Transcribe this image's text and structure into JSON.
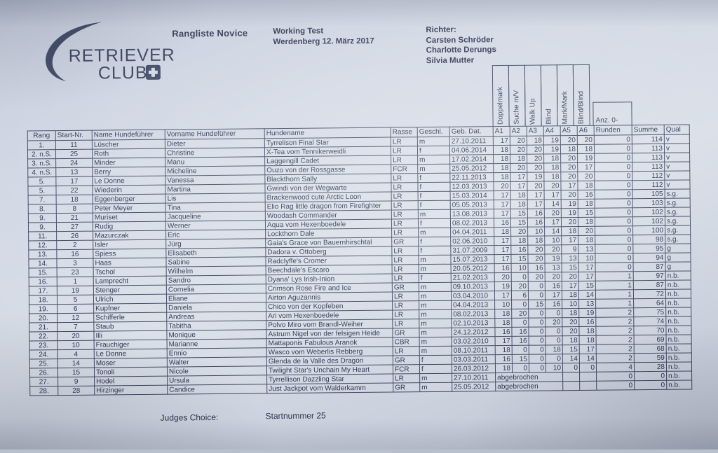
{
  "logo": {
    "line1": "RETRIEVER",
    "line2": "CLUB"
  },
  "header": {
    "title": "Rangliste Novice",
    "event_name": "Working Test",
    "event_place_date": "Werdenberg 12. März 2017",
    "judges_label": "Richter:",
    "judges": [
      "Carsten Schröder",
      "Charlotte Derungs",
      "Silvia Mutter"
    ]
  },
  "table": {
    "rotated_headers": [
      "Doppelmark",
      "Suche m/V",
      "Walk Up",
      "Blind",
      "Mark/Mark",
      "Blind/Blind"
    ],
    "anz_label": "Anz. 0-",
    "columns": [
      "Rang",
      "Start-Nr.",
      "Name Hundeführer",
      "Vorname Hundeführer",
      "Hundename",
      "Rasse",
      "Geschl.",
      "Geb. Dat.",
      "A1",
      "A2",
      "A3",
      "A4",
      "A5",
      "A6",
      "Runden",
      "Summe",
      "Qual"
    ],
    "abort_text": "abgebrochen",
    "rows": [
      {
        "rang": "1.",
        "start": "11",
        "name": "Lüscher",
        "vorname": "Dieter",
        "hund": "Tyrrelison Final Star",
        "rasse": "LR",
        "geschl": "m",
        "geb": "27.10.2011",
        "scores": [
          17,
          20,
          18,
          19,
          20,
          20
        ],
        "runden": 0,
        "summe": 114,
        "qual": "v"
      },
      {
        "rang": "2. n.S.",
        "start": "25",
        "name": "Roth",
        "vorname": "Christine",
        "hund": "X-Tea vom Tennikerweidli",
        "rasse": "LR",
        "geschl": "f",
        "geb": "04.06.2014",
        "scores": [
          18,
          20,
          20,
          19,
          18,
          18
        ],
        "runden": 0,
        "summe": 113,
        "qual": "v"
      },
      {
        "rang": "3. n.S.",
        "start": "24",
        "name": "Minder",
        "vorname": "Manu",
        "hund": "Laggengill Cadet",
        "rasse": "LR",
        "geschl": "m",
        "geb": "17.02.2014",
        "scores": [
          18,
          18,
          20,
          18,
          20,
          19
        ],
        "runden": 0,
        "summe": 113,
        "qual": "v"
      },
      {
        "rang": "4. n.S.",
        "start": "13",
        "name": "Berry",
        "vorname": "Micheline",
        "hund": "Ouzo von der Rossgasse",
        "rasse": "FCR",
        "geschl": "m",
        "geb": "25.05.2012",
        "scores": [
          18,
          20,
          20,
          18,
          20,
          17
        ],
        "runden": 0,
        "summe": 113,
        "qual": "v"
      },
      {
        "rang": "5.",
        "start": "17",
        "name": "Le Donne",
        "vorname": "Vanessa",
        "hund": "Blackthorn Sally",
        "rasse": "LR",
        "geschl": "f",
        "geb": "22.11.2013",
        "scores": [
          18,
          17,
          19,
          18,
          20,
          20
        ],
        "runden": 0,
        "summe": 112,
        "qual": "v"
      },
      {
        "rang": "5.",
        "start": "22",
        "name": "Wiederin",
        "vorname": "Martina",
        "hund": "Gwindi von der Wegwarte",
        "rasse": "LR",
        "geschl": "f",
        "geb": "12.03.2013",
        "scores": [
          20,
          17,
          20,
          20,
          17,
          18
        ],
        "runden": 0,
        "summe": 112,
        "qual": "v"
      },
      {
        "rang": "7.",
        "start": "18",
        "name": "Eggenberger",
        "vorname": "Lis",
        "hund": "Brackenwood cute Arctic Loon",
        "rasse": "LR",
        "geschl": "f",
        "geb": "15.03.2014",
        "scores": [
          17,
          18,
          17,
          17,
          20,
          16
        ],
        "runden": 0,
        "summe": 105,
        "qual": "s.g."
      },
      {
        "rang": "8.",
        "start": "8",
        "name": "Peter Meyer",
        "vorname": "Tina",
        "hund": "Elio Rag little dragon from Firefighter",
        "rasse": "LR",
        "geschl": "f",
        "geb": "05.05.2013",
        "scores": [
          17,
          18,
          17,
          14,
          19,
          18
        ],
        "runden": 0,
        "summe": 103,
        "qual": "s.g."
      },
      {
        "rang": "9.",
        "start": "21",
        "name": "Muriset",
        "vorname": "Jacqueline",
        "hund": "Woodash Commander",
        "rasse": "LR",
        "geschl": "m",
        "geb": "13.08.2013",
        "scores": [
          17,
          15,
          16,
          20,
          19,
          15
        ],
        "runden": 0,
        "summe": 102,
        "qual": "s.g."
      },
      {
        "rang": "9.",
        "start": "27",
        "name": "Rudig",
        "vorname": "Werner",
        "hund": "Aqua vom Hexenboedele",
        "rasse": "LR",
        "geschl": "f",
        "geb": "08.02.2013",
        "scores": [
          16,
          15,
          16,
          17,
          20,
          18
        ],
        "runden": 0,
        "summe": 102,
        "qual": "s.g."
      },
      {
        "rang": "11.",
        "start": "26",
        "name": "Mazurczak",
        "vorname": "Eric",
        "hund": "Lockthorn Dale",
        "rasse": "LR",
        "geschl": "m",
        "geb": "04.04.2011",
        "scores": [
          18,
          20,
          10,
          14,
          18,
          20
        ],
        "runden": 0,
        "summe": 100,
        "qual": "s.g."
      },
      {
        "rang": "12.",
        "start": "2",
        "name": "Isler",
        "vorname": "Jürg",
        "hund": "Gaia's Grace von Bauernhirschtal",
        "rasse": "GR",
        "geschl": "f",
        "geb": "02.06.2010",
        "scores": [
          17,
          18,
          18,
          10,
          17,
          18
        ],
        "runden": 0,
        "summe": 98,
        "qual": "s.g."
      },
      {
        "rang": "13.",
        "start": "16",
        "name": "Spiess",
        "vorname": "Elisabeth",
        "hund": "Dadora v. Ottoberg",
        "rasse": "LR",
        "geschl": "f",
        "geb": "31.07.2009",
        "scores": [
          17,
          16,
          20,
          20,
          9,
          13
        ],
        "runden": 0,
        "summe": 95,
        "qual": "g"
      },
      {
        "rang": "14.",
        "start": "3",
        "name": "Haas",
        "vorname": "Sabine",
        "hund": "Radclyffe's Cromer",
        "rasse": "LR",
        "geschl": "m",
        "geb": "15.07.2013",
        "scores": [
          17,
          15,
          20,
          19,
          13,
          10
        ],
        "runden": 0,
        "summe": 94,
        "qual": "g"
      },
      {
        "rang": "15.",
        "start": "23",
        "name": "Tschol",
        "vorname": "Wilhelm",
        "hund": "Beechdale's Escaro",
        "rasse": "LR",
        "geschl": "m",
        "geb": "20.05.2012",
        "scores": [
          16,
          10,
          16,
          13,
          15,
          17
        ],
        "runden": 0,
        "summe": 87,
        "qual": "g"
      },
      {
        "rang": "16.",
        "start": "1",
        "name": "Lamprecht",
        "vorname": "Sandro",
        "hund": "Dyana' Lys Irish-Inion",
        "rasse": "LR",
        "geschl": "f",
        "geb": "21.02.2013",
        "scores": [
          20,
          0,
          20,
          20,
          20,
          17
        ],
        "runden": 1,
        "summe": 97,
        "qual": "n.b."
      },
      {
        "rang": "17.",
        "start": "19",
        "name": "Stenger",
        "vorname": "Cornelia",
        "hund": "Crimson Rose Fire and Ice",
        "rasse": "GR",
        "geschl": "m",
        "geb": "09.10.2013",
        "scores": [
          19,
          20,
          0,
          16,
          17,
          15
        ],
        "runden": 1,
        "summe": 87,
        "qual": "n.b."
      },
      {
        "rang": "18.",
        "start": "5",
        "name": "Ulrich",
        "vorname": "Eliane",
        "hund": "Airton Aguzannis",
        "rasse": "LR",
        "geschl": "m",
        "geb": "03.04.2010",
        "scores": [
          17,
          6,
          0,
          17,
          18,
          14
        ],
        "runden": 1,
        "summe": 72,
        "qual": "n.b."
      },
      {
        "rang": "19.",
        "start": "6",
        "name": "Kupfner",
        "vorname": "Daniela",
        "hund": "Chico von der Kopfeben",
        "rasse": "LR",
        "geschl": "m",
        "geb": "04.04.2013",
        "scores": [
          10,
          0,
          15,
          16,
          10,
          13
        ],
        "runden": 1,
        "summe": 64,
        "qual": "n.b."
      },
      {
        "rang": "20.",
        "start": "12",
        "name": "Schifferle",
        "vorname": "Andreas",
        "hund": "Ari vom Hexenboedele",
        "rasse": "LR",
        "geschl": "m",
        "geb": "08.02.2013",
        "scores": [
          18,
          20,
          0,
          0,
          18,
          19
        ],
        "runden": 2,
        "summe": 75,
        "qual": "n.b."
      },
      {
        "rang": "21.",
        "start": "7",
        "name": "Staub",
        "vorname": "Tabitha",
        "hund": "Polvo Miro vom Brandl-Weiher",
        "rasse": "LR",
        "geschl": "m",
        "geb": "02.10.2013",
        "scores": [
          18,
          0,
          0,
          20,
          20,
          16
        ],
        "runden": 2,
        "summe": 74,
        "qual": "n.b."
      },
      {
        "rang": "22.",
        "start": "20",
        "name": "Illi",
        "vorname": "Monique",
        "hund": "Astrum Nigel von der felsigen Heide",
        "rasse": "GR",
        "geschl": "m",
        "geb": "24.12.2012",
        "scores": [
          16,
          16,
          0,
          0,
          20,
          18
        ],
        "runden": 2,
        "summe": 70,
        "qual": "n.b."
      },
      {
        "rang": "23.",
        "start": "10",
        "name": "Frauchiger",
        "vorname": "Marianne",
        "hund": "Mattaponis Fabulous Aranok",
        "rasse": "CBR",
        "geschl": "m",
        "geb": "03.02.2010",
        "scores": [
          17,
          16,
          0,
          0,
          18,
          18
        ],
        "runden": 2,
        "summe": 69,
        "qual": "n.b."
      },
      {
        "rang": "24.",
        "start": "4",
        "name": "Le Donne",
        "vorname": "Ennio",
        "hund": "Wasco vom Weberlis Rebberg",
        "rasse": "LR",
        "geschl": "m",
        "geb": "08.10.2011",
        "scores": [
          18,
          0,
          0,
          18,
          15,
          17
        ],
        "runden": 2,
        "summe": 68,
        "qual": "n.b."
      },
      {
        "rang": "25.",
        "start": "14",
        "name": "Moser",
        "vorname": "Walter",
        "hund": "Glenda de la Valle des Dragon",
        "rasse": "GR",
        "geschl": "f",
        "geb": "03.03.2011",
        "scores": [
          16,
          15,
          0,
          0,
          14,
          14
        ],
        "runden": 2,
        "summe": 59,
        "qual": "n.b."
      },
      {
        "rang": "26.",
        "start": "15",
        "name": "Tonoli",
        "vorname": "Nicole",
        "hund": "Twilight Star's Unchain My Heart",
        "rasse": "FCR",
        "geschl": "f",
        "geb": "26.03.2012",
        "scores": [
          18,
          0,
          0,
          10,
          0,
          0
        ],
        "runden": 4,
        "summe": 28,
        "qual": "n.b."
      },
      {
        "rang": "27.",
        "start": "9",
        "name": "Hodel",
        "vorname": "Ursula",
        "hund": "Tyrrellison Dazzling Star",
        "rasse": "LR",
        "geschl": "m",
        "geb": "27.10.2011",
        "scores": null,
        "runden": 0,
        "summe": 0,
        "qual": "n.b."
      },
      {
        "rang": "28.",
        "start": "28",
        "name": "Hirzinger",
        "vorname": "Candice",
        "hund": "Just Jackpot vom Walderkamm",
        "rasse": "GR",
        "geschl": "m",
        "geb": "25.05.2012",
        "scores": null,
        "runden": 0,
        "summe": 0,
        "qual": "n.b."
      }
    ]
  },
  "footer": {
    "judges_choice_label": "Judges Choice:",
    "judges_choice_value": "Startnummer 25"
  },
  "colors": {
    "ink": "#2e3650",
    "paper": "#d2d8e4",
    "grid": "#3c4560"
  }
}
